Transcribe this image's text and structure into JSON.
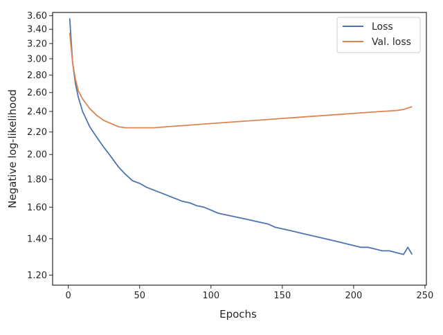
{
  "chart_data": {
    "type": "line",
    "title": "",
    "xlabel": "Epochs",
    "ylabel": "Negative log-likelihood",
    "xlim": [
      -11,
      251
    ],
    "ylim": [
      1.15,
      3.65
    ],
    "y_scale": "log",
    "grid": false,
    "legend_position": "top-right",
    "x_ticks": [
      0,
      50,
      100,
      150,
      200,
      250
    ],
    "x_tick_labels": [
      "0",
      "50",
      "100",
      "150",
      "200",
      "250"
    ],
    "y_ticks": [
      1.2,
      1.4,
      1.6,
      1.8,
      2.0,
      2.2,
      2.4,
      2.6,
      2.8,
      3.0,
      3.2,
      3.4,
      3.6
    ],
    "y_tick_labels": [
      "1.20",
      "1.40",
      "1.60",
      "1.80",
      "2.00",
      "2.20",
      "2.40",
      "2.60",
      "2.80",
      "3.00",
      "3.20",
      "3.40",
      "3.60"
    ],
    "series": [
      {
        "name": "Loss",
        "color": "#4c72b0",
        "x": [
          1,
          3,
          5,
          7,
          10,
          15,
          20,
          25,
          30,
          35,
          40,
          45,
          50,
          55,
          60,
          65,
          70,
          75,
          80,
          85,
          90,
          95,
          100,
          105,
          110,
          115,
          120,
          125,
          130,
          135,
          140,
          145,
          150,
          155,
          160,
          165,
          170,
          175,
          180,
          185,
          190,
          195,
          200,
          205,
          210,
          215,
          220,
          225,
          230,
          235,
          238,
          241
        ],
        "y": [
          3.56,
          2.95,
          2.7,
          2.55,
          2.4,
          2.25,
          2.15,
          2.06,
          1.98,
          1.9,
          1.84,
          1.79,
          1.77,
          1.74,
          1.72,
          1.7,
          1.68,
          1.66,
          1.64,
          1.63,
          1.61,
          1.6,
          1.58,
          1.56,
          1.55,
          1.54,
          1.53,
          1.52,
          1.51,
          1.5,
          1.49,
          1.47,
          1.46,
          1.45,
          1.44,
          1.43,
          1.42,
          1.41,
          1.4,
          1.39,
          1.38,
          1.37,
          1.36,
          1.35,
          1.35,
          1.34,
          1.33,
          1.33,
          1.32,
          1.31,
          1.35,
          1.31
        ]
      },
      {
        "name": "Val. loss",
        "color": "#dd8452",
        "x": [
          1,
          3,
          5,
          7,
          10,
          15,
          20,
          25,
          30,
          35,
          40,
          45,
          50,
          60,
          70,
          80,
          90,
          100,
          110,
          120,
          130,
          140,
          150,
          160,
          170,
          180,
          190,
          200,
          210,
          220,
          230,
          235,
          241
        ],
        "y": [
          3.35,
          2.95,
          2.75,
          2.62,
          2.53,
          2.43,
          2.36,
          2.31,
          2.28,
          2.25,
          2.24,
          2.24,
          2.24,
          2.24,
          2.25,
          2.26,
          2.27,
          2.28,
          2.29,
          2.3,
          2.31,
          2.32,
          2.33,
          2.34,
          2.35,
          2.36,
          2.37,
          2.38,
          2.39,
          2.4,
          2.41,
          2.42,
          2.45
        ]
      }
    ]
  }
}
